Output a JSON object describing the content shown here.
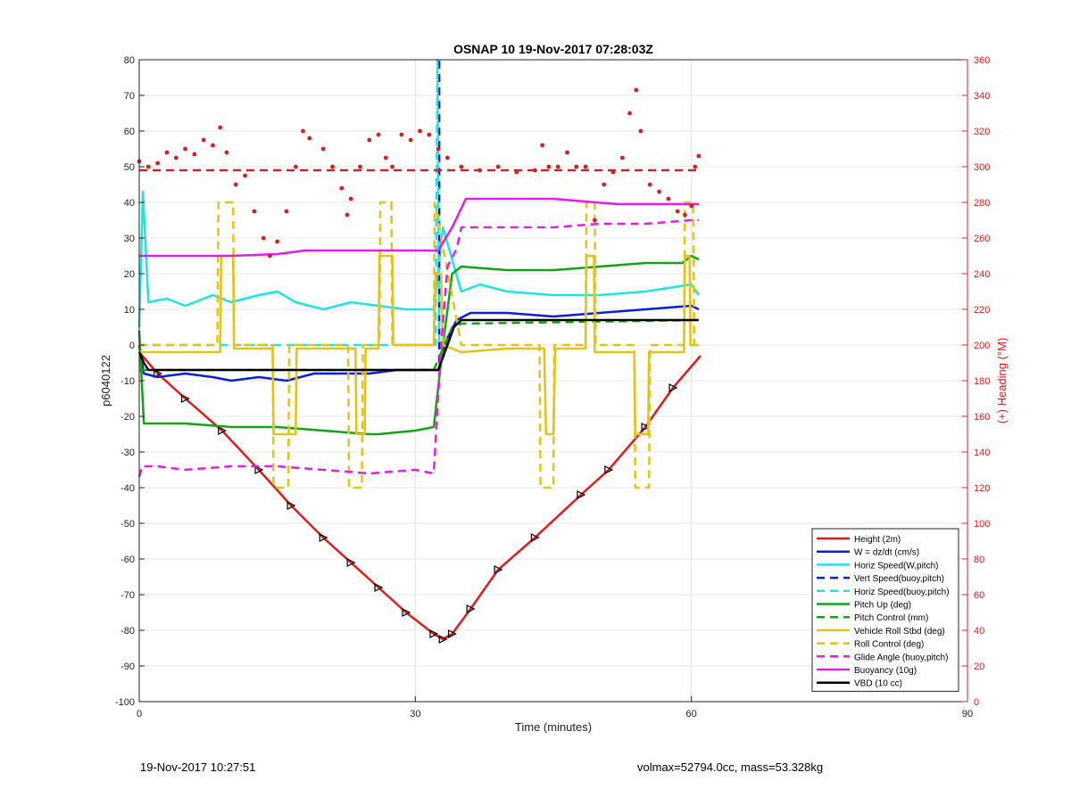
{
  "chart_data": {
    "type": "line",
    "title": "OSNAP 10 19-Nov-2017 07:28:03Z",
    "xlabel": "Time (minutes)",
    "ylabel_left": "p6040122",
    "ylabel_right": "(+) Heading (°M)",
    "xlim": [
      0,
      90
    ],
    "ylim_left": [
      -100,
      80
    ],
    "ylim_right": [
      0,
      360
    ],
    "x_ticks": [
      0,
      30,
      60,
      90
    ],
    "y_ticks_left": [
      -100,
      -90,
      -80,
      -70,
      -60,
      -50,
      -40,
      -30,
      -20,
      -10,
      0,
      10,
      20,
      30,
      40,
      50,
      60,
      70,
      80
    ],
    "y_ticks_right": [
      0,
      20,
      40,
      60,
      80,
      100,
      120,
      140,
      160,
      180,
      200,
      220,
      240,
      260,
      280,
      300,
      320,
      340,
      360
    ],
    "grid": true,
    "legend_position": "bottom-right",
    "colors": {
      "red": "#dd1c1c",
      "blue": "#0a1fd6",
      "cyan": "#20e3e3",
      "green": "#13a313",
      "yellow": "#e3c313",
      "magenta": "#e61be6",
      "black": "#000000",
      "right_axis": "#d42020"
    },
    "series": [
      {
        "name": "Height (2m)",
        "color": "#dd1c1c",
        "style": "solid",
        "axis": "left",
        "x": [
          0,
          2,
          5,
          9,
          13,
          16.5,
          20,
          23,
          26,
          29,
          32,
          33,
          34,
          36,
          39,
          43,
          48,
          51,
          55,
          58,
          61
        ],
        "y": [
          -2,
          -8,
          -15,
          -24,
          -35,
          -45,
          -54,
          -61,
          -68,
          -75,
          -81,
          -82.5,
          -81,
          -74,
          -63,
          -54,
          -42,
          -35,
          -23,
          -12,
          -3
        ]
      },
      {
        "name": "W = dz/dt (cm/s)",
        "color": "#0a1fd6",
        "style": "solid",
        "axis": "left",
        "x": [
          0,
          0.5,
          2,
          5,
          8,
          10,
          13,
          16,
          19,
          22,
          25,
          28,
          31,
          32.5,
          33.5,
          34.5,
          36,
          40,
          45,
          50,
          55,
          60,
          60.8
        ],
        "y": [
          0,
          -8,
          -9,
          -8,
          -9,
          -10,
          -9,
          -10,
          -8,
          -8,
          -8,
          -7,
          -7,
          -7,
          2,
          7,
          9,
          9,
          8,
          9,
          10,
          11,
          10
        ]
      },
      {
        "name": "Horiz Speed(W,pitch)",
        "color": "#20e3e3",
        "style": "solid",
        "axis": "left",
        "x": [
          0,
          0.4,
          1,
          3,
          5,
          8,
          10,
          13,
          15,
          17,
          20,
          23,
          26,
          29,
          32,
          33,
          34,
          35,
          37,
          40,
          45,
          50,
          55,
          60,
          60.8
        ],
        "y": [
          5,
          43,
          12,
          13,
          11,
          14,
          12,
          14,
          15,
          12,
          10,
          12,
          11,
          10,
          10,
          33,
          24,
          15,
          17,
          15,
          14,
          14,
          15,
          17,
          14
        ]
      },
      {
        "name": "Vert Speed(buoy,pitch)",
        "color": "#0a1fd6",
        "style": "dashed",
        "axis": "left",
        "x": [
          32.6,
          32.6
        ],
        "y": [
          -5,
          80
        ]
      },
      {
        "name": "Horiz Speed(buoy,pitch)",
        "color": "#20e3e3",
        "style": "dashed",
        "axis": "left",
        "x": [
          0,
          32.2,
          32.4,
          32.6
        ],
        "y": [
          0,
          0,
          80,
          0
        ]
      },
      {
        "name": "Pitch Up (deg)",
        "color": "#13a313",
        "style": "solid",
        "axis": "left",
        "x": [
          0,
          0.5,
          2,
          5,
          10,
          15,
          20,
          25,
          26,
          30,
          32,
          33,
          34,
          35,
          40,
          45,
          50,
          55,
          59,
          60,
          60.8
        ],
        "y": [
          4,
          -22,
          -22,
          -22,
          -23,
          -23,
          -24,
          -25,
          -25,
          -24,
          -23,
          0,
          20,
          22,
          21,
          21,
          22,
          23,
          23,
          25,
          24
        ]
      },
      {
        "name": "Pitch Control (mm)",
        "color": "#13a313",
        "style": "dashed",
        "axis": "left",
        "x": [
          0,
          32,
          34,
          35,
          60.8
        ],
        "y": [
          -7,
          -7,
          5,
          6,
          7
        ]
      },
      {
        "name": "Vehicle Roll Stbd (deg)",
        "color": "#e3c313",
        "style": "solid",
        "axis": "left",
        "x": [
          0,
          8.8,
          8.9,
          10.2,
          10.3,
          14.5,
          14.6,
          17,
          17.1,
          23.5,
          23.6,
          24.5,
          24.6,
          26,
          26.1,
          27.5,
          27.6,
          32,
          32.2,
          32.8,
          33,
          35,
          40,
          44,
          44.2,
          45,
          45.2,
          48.5,
          48.6,
          49.4,
          49.5,
          53.8,
          53.9,
          55.3,
          55.4,
          59.2,
          59.3,
          59.8,
          59.9,
          60.8
        ],
        "y": [
          -2,
          -2,
          25,
          25,
          -1,
          -1,
          -25,
          -25,
          -1,
          -1,
          -25,
          -25,
          -1,
          -1,
          25,
          25,
          0,
          0,
          20,
          20,
          0,
          -2,
          -1,
          -1,
          -25,
          -25,
          -1,
          -1,
          25,
          25,
          -2,
          -2,
          -25,
          -25,
          -2,
          -2,
          25,
          25,
          0,
          0
        ]
      },
      {
        "name": "Roll Control (deg)",
        "color": "#e3c313",
        "style": "dashed",
        "axis": "left",
        "x": [
          0,
          8.5,
          8.6,
          10.2,
          10.3,
          14.5,
          14.6,
          16.2,
          16.3,
          22.7,
          22.8,
          24.2,
          24.3,
          26.1,
          26.2,
          27.4,
          27.5,
          32,
          32.1,
          35,
          43.5,
          43.6,
          45,
          45.1,
          48.5,
          48.6,
          49.5,
          49.6,
          53.8,
          53.9,
          55.4,
          55.5,
          59.2,
          59.3,
          60.2,
          60.3,
          60.8
        ],
        "y": [
          0,
          0,
          40,
          40,
          0,
          0,
          -40,
          -40,
          0,
          0,
          -40,
          -40,
          0,
          0,
          40,
          40,
          0,
          0,
          40,
          0,
          0,
          -40,
          -40,
          0,
          0,
          40,
          40,
          0,
          0,
          -40,
          -40,
          0,
          0,
          40,
          40,
          0,
          0
        ]
      },
      {
        "name": "Glide Angle (buoy,pitch)",
        "color": "#e61be6",
        "style": "dashed",
        "axis": "left",
        "x": [
          0,
          0.3,
          2,
          5,
          10,
          15,
          20,
          25,
          30,
          32,
          32.8,
          33.5,
          34.5,
          35,
          40,
          45,
          50,
          55,
          60,
          60.8
        ],
        "y": [
          -37,
          -34,
          -34,
          -35,
          -34,
          -34,
          -35,
          -36,
          -35,
          -36,
          0,
          22,
          27,
          33,
          33,
          33,
          34,
          34,
          35,
          35
        ]
      },
      {
        "name": "Buoyancy (10g)",
        "color": "#e61be6",
        "style": "solid",
        "axis": "left",
        "x": [
          0,
          10,
          15,
          18,
          25,
          32.5,
          34,
          35.5,
          45,
          52,
          60.8
        ],
        "y": [
          25,
          25,
          25.5,
          26.5,
          26.5,
          26.5,
          33,
          41,
          41,
          39.5,
          39.5
        ]
      },
      {
        "name": "VBD (10 cc)",
        "color": "#000000",
        "style": "solid",
        "axis": "left",
        "x": [
          0,
          0.5,
          1,
          10,
          20,
          32.5,
          33.5,
          34.2,
          35,
          45,
          60.8
        ],
        "y": [
          -2,
          -5,
          -7,
          -7,
          -7,
          -7,
          0,
          5,
          7,
          7,
          7
        ]
      },
      {
        "name": "",
        "color": "#d42020",
        "style": "dashed",
        "axis": "right",
        "legend": false,
        "x": [
          0,
          60.8
        ],
        "y": [
          298,
          298
        ]
      },
      {
        "name": "",
        "color": "#d42020",
        "style": "dotted",
        "axis": "right",
        "legend": false,
        "x": [
          0,
          1,
          2,
          3,
          4,
          5,
          6,
          7,
          8,
          8.8,
          9.5,
          10.5,
          11.5,
          12.5,
          13.5,
          14.2,
          15,
          16,
          17,
          17.8,
          18.5,
          20,
          21,
          22,
          22.6,
          23,
          24,
          25,
          26,
          26.8,
          27.5,
          28.5,
          29.5,
          30.5,
          31.5,
          32.5,
          33.5,
          35,
          37,
          39,
          41,
          43,
          43.8,
          44.5,
          45.5,
          46.5,
          47.5,
          48.5,
          49.5,
          50.5,
          51.5,
          52.5,
          53.3,
          54,
          54.5,
          55.5,
          56.5,
          57.5,
          58.5,
          59.3,
          60,
          60.4,
          60.8
        ],
        "y": [
          303,
          300,
          302,
          308,
          305,
          310,
          307,
          315,
          312,
          322,
          308,
          290,
          295,
          275,
          260,
          250,
          258,
          275,
          300,
          320,
          316,
          310,
          300,
          288,
          273,
          282,
          300,
          315,
          318,
          305,
          300,
          318,
          315,
          320,
          318,
          310,
          305,
          300,
          298,
          300,
          297,
          298,
          312,
          300,
          300,
          308,
          300,
          300,
          270,
          290,
          297,
          305,
          330,
          343,
          320,
          290,
          286,
          282,
          275,
          273,
          278,
          300,
          306
        ]
      }
    ]
  },
  "footer": {
    "timestamp": "19-Nov-2017 10:27:51",
    "info": "volmax=52794.0cc, mass=53.328kg"
  }
}
